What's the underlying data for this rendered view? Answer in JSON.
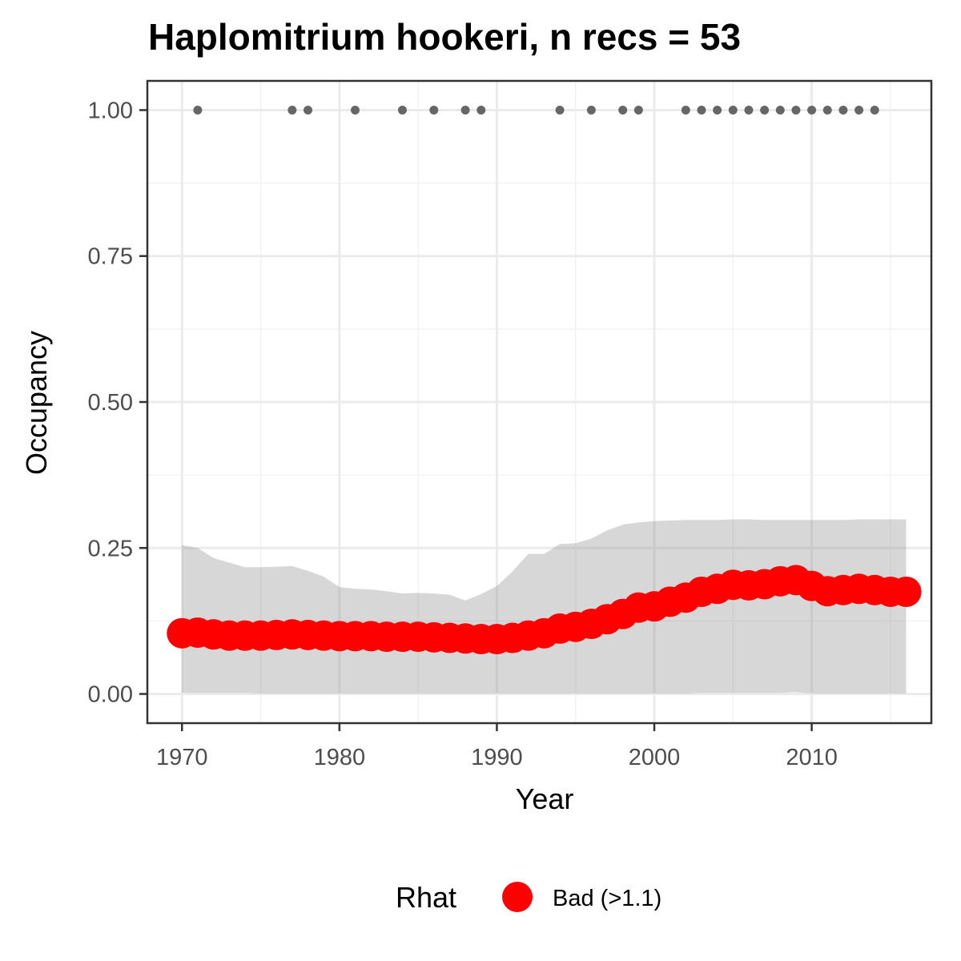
{
  "chart_data": {
    "type": "line",
    "title": "Haplomitrium hookeri, n recs = 53",
    "xlabel": "Year",
    "ylabel": "Occupancy",
    "xlim": [
      1967.8,
      2017.6
    ],
    "ylim": [
      -0.05,
      1.05
    ],
    "x_ticks": [
      1970,
      1980,
      1990,
      2000,
      2010
    ],
    "x_tick_labels": [
      "1970",
      "1980",
      "1990",
      "2000",
      "2010"
    ],
    "y_ticks": [
      0,
      0.25,
      0.5,
      0.75,
      1.0
    ],
    "y_tick_labels": [
      "0.00",
      "0.25",
      "0.50",
      "0.75",
      "1.00"
    ],
    "grid": true,
    "series": [
      {
        "name": "Bad (>1.1)",
        "type": "point",
        "color": "#ff0000",
        "x": [
          1970,
          1971,
          1972,
          1973,
          1974,
          1975,
          1976,
          1977,
          1978,
          1979,
          1980,
          1981,
          1982,
          1983,
          1984,
          1985,
          1986,
          1987,
          1988,
          1989,
          1990,
          1991,
          1992,
          1993,
          1994,
          1995,
          1996,
          1997,
          1998,
          1999,
          2000,
          2001,
          2002,
          2003,
          2004,
          2005,
          2006,
          2007,
          2008,
          2009,
          2010,
          2011,
          2012,
          2013,
          2014,
          2015,
          2016
        ],
        "y": [
          0.104,
          0.105,
          0.102,
          0.1,
          0.1,
          0.1,
          0.101,
          0.102,
          0.101,
          0.1,
          0.099,
          0.099,
          0.099,
          0.098,
          0.098,
          0.098,
          0.097,
          0.096,
          0.095,
          0.094,
          0.094,
          0.096,
          0.1,
          0.104,
          0.112,
          0.115,
          0.12,
          0.128,
          0.137,
          0.148,
          0.15,
          0.158,
          0.165,
          0.175,
          0.18,
          0.187,
          0.186,
          0.188,
          0.193,
          0.195,
          0.185,
          0.176,
          0.178,
          0.18,
          0.178,
          0.175,
          0.175
        ]
      },
      {
        "type": "ribbon",
        "color": "#d9d9d9",
        "x": [
          1970,
          1971,
          1972,
          1973,
          1974,
          1975,
          1976,
          1977,
          1978,
          1979,
          1980,
          1981,
          1982,
          1983,
          1984,
          1985,
          1986,
          1987,
          1988,
          1989,
          1990,
          1991,
          1992,
          1993,
          1994,
          1995,
          1996,
          1997,
          1998,
          1999,
          2000,
          2001,
          2002,
          2003,
          2004,
          2005,
          2006,
          2007,
          2008,
          2009,
          2010,
          2011,
          2012,
          2013,
          2014,
          2015,
          2016
        ],
        "upper": [
          0.255,
          0.25,
          0.233,
          0.225,
          0.217,
          0.217,
          0.218,
          0.219,
          0.211,
          0.201,
          0.183,
          0.18,
          0.179,
          0.176,
          0.172,
          0.173,
          0.172,
          0.17,
          0.16,
          0.171,
          0.185,
          0.21,
          0.24,
          0.24,
          0.257,
          0.258,
          0.266,
          0.28,
          0.29,
          0.294,
          0.296,
          0.297,
          0.298,
          0.298,
          0.298,
          0.299,
          0.299,
          0.298,
          0.298,
          0.298,
          0.298,
          0.298,
          0.298,
          0.299,
          0.299,
          0.299,
          0.299
        ],
        "lower": [
          0.002,
          0.002,
          0.002,
          0.002,
          0.002,
          0.001,
          0.001,
          0.001,
          0.001,
          0.001,
          0.001,
          0.001,
          0.001,
          0.001,
          0.001,
          0.001,
          0.001,
          0.001,
          0.001,
          0.001,
          0.001,
          0.001,
          0.001,
          0.001,
          0.001,
          0.001,
          0.001,
          0.001,
          0.001,
          0.001,
          0.001,
          0.001,
          0.001,
          0.002,
          0.002,
          0.002,
          0.002,
          0.002,
          0.002,
          0.003,
          0.001,
          0.001,
          0.001,
          0.001,
          0.001,
          0.001,
          0.001
        ]
      },
      {
        "type": "point",
        "color": "#666666",
        "x": [
          1971,
          1977,
          1978,
          1981,
          1984,
          1986,
          1988,
          1989,
          1994,
          1996,
          1998,
          1999,
          2002,
          2003,
          2004,
          2005,
          2006,
          2007,
          2008,
          2009,
          2010,
          2011,
          2012,
          2013,
          2014
        ],
        "y": [
          1,
          1,
          1,
          1,
          1,
          1,
          1,
          1,
          1,
          1,
          1,
          1,
          1,
          1,
          1,
          1,
          1,
          1,
          1,
          1,
          1,
          1,
          1,
          1,
          1
        ]
      }
    ],
    "legend": {
      "title": "Rhat",
      "placement": "bottom",
      "entries": [
        "Bad (>1.1)"
      ]
    }
  }
}
